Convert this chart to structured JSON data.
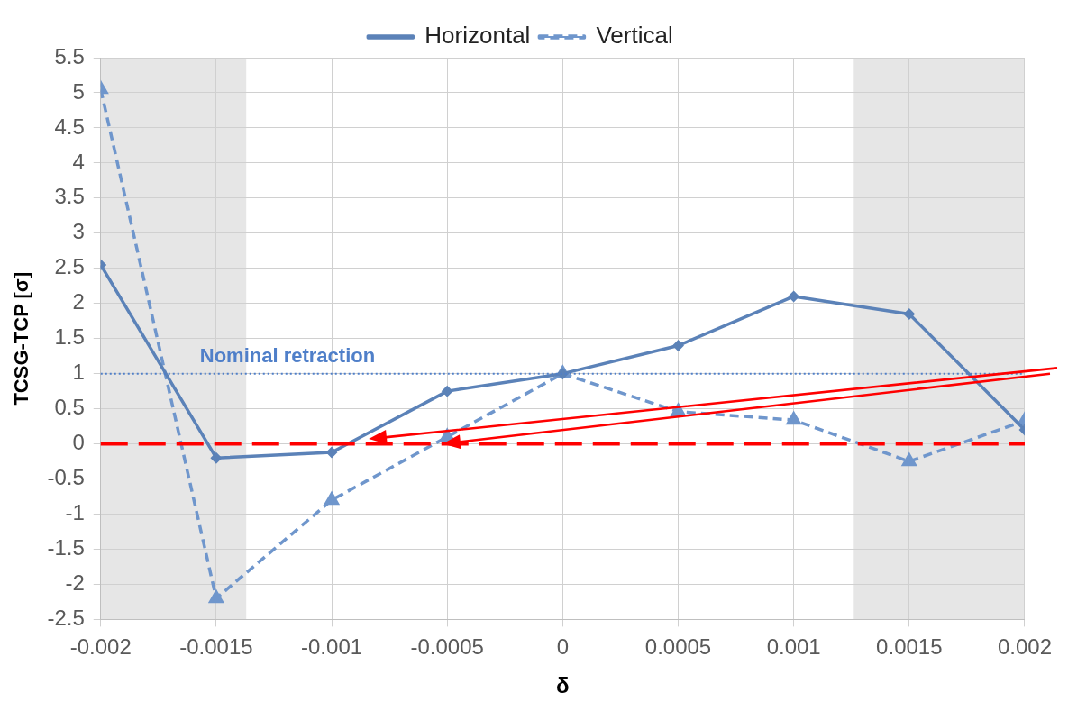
{
  "chart_data": {
    "type": "line",
    "xlabel": "δ",
    "ylabel": "TCSG-TCP [σ]",
    "xlim": [
      -0.002,
      0.002
    ],
    "xticks": [
      -0.002,
      -0.0015,
      -0.001,
      -0.0005,
      0,
      0.0005,
      0.001,
      0.0015,
      0.002
    ],
    "ylim": [
      -2.5,
      5.5
    ],
    "yticks": [
      -2.5,
      -2,
      -1.5,
      -1,
      -0.5,
      0,
      0.5,
      1,
      1.5,
      2,
      2.5,
      3,
      3.5,
      4,
      4.5,
      5,
      5.5
    ],
    "x": [
      -0.002,
      -0.0015,
      -0.001,
      -0.0005,
      0,
      0.0005,
      0.001,
      0.0015,
      0.002
    ],
    "series": [
      {
        "name": "Horizontal",
        "color": "#5b82b8",
        "values": [
          2.55,
          -0.2,
          -0.12,
          0.75,
          1.0,
          1.4,
          2.1,
          1.85,
          0.2
        ],
        "marker": "diamond",
        "line_style": "solid"
      },
      {
        "name": "Vertical",
        "color": "#6f96cc",
        "values": [
          5.05,
          -2.2,
          -0.8,
          0.1,
          1.0,
          0.46,
          0.34,
          -0.25,
          0.33
        ],
        "marker": "triangle",
        "line_style": "dashed"
      }
    ],
    "ref_lines": [
      {
        "axis": "y",
        "value": 1,
        "label": "Nominal retraction",
        "color": "#4f7fc9",
        "line_style": "dotted"
      },
      {
        "axis": "y",
        "value": 0,
        "label": null,
        "color": "#ff0000",
        "line_style": "dashed"
      }
    ],
    "bands": [
      {
        "axis": "x",
        "from": -0.002,
        "to": -0.00137,
        "label": null,
        "color": "#e6e6e6"
      },
      {
        "axis": "x",
        "from": 0.00126,
        "to": 0.002,
        "label": null,
        "color": "#e6e6e6"
      }
    ],
    "grid": true,
    "legend": "top"
  }
}
